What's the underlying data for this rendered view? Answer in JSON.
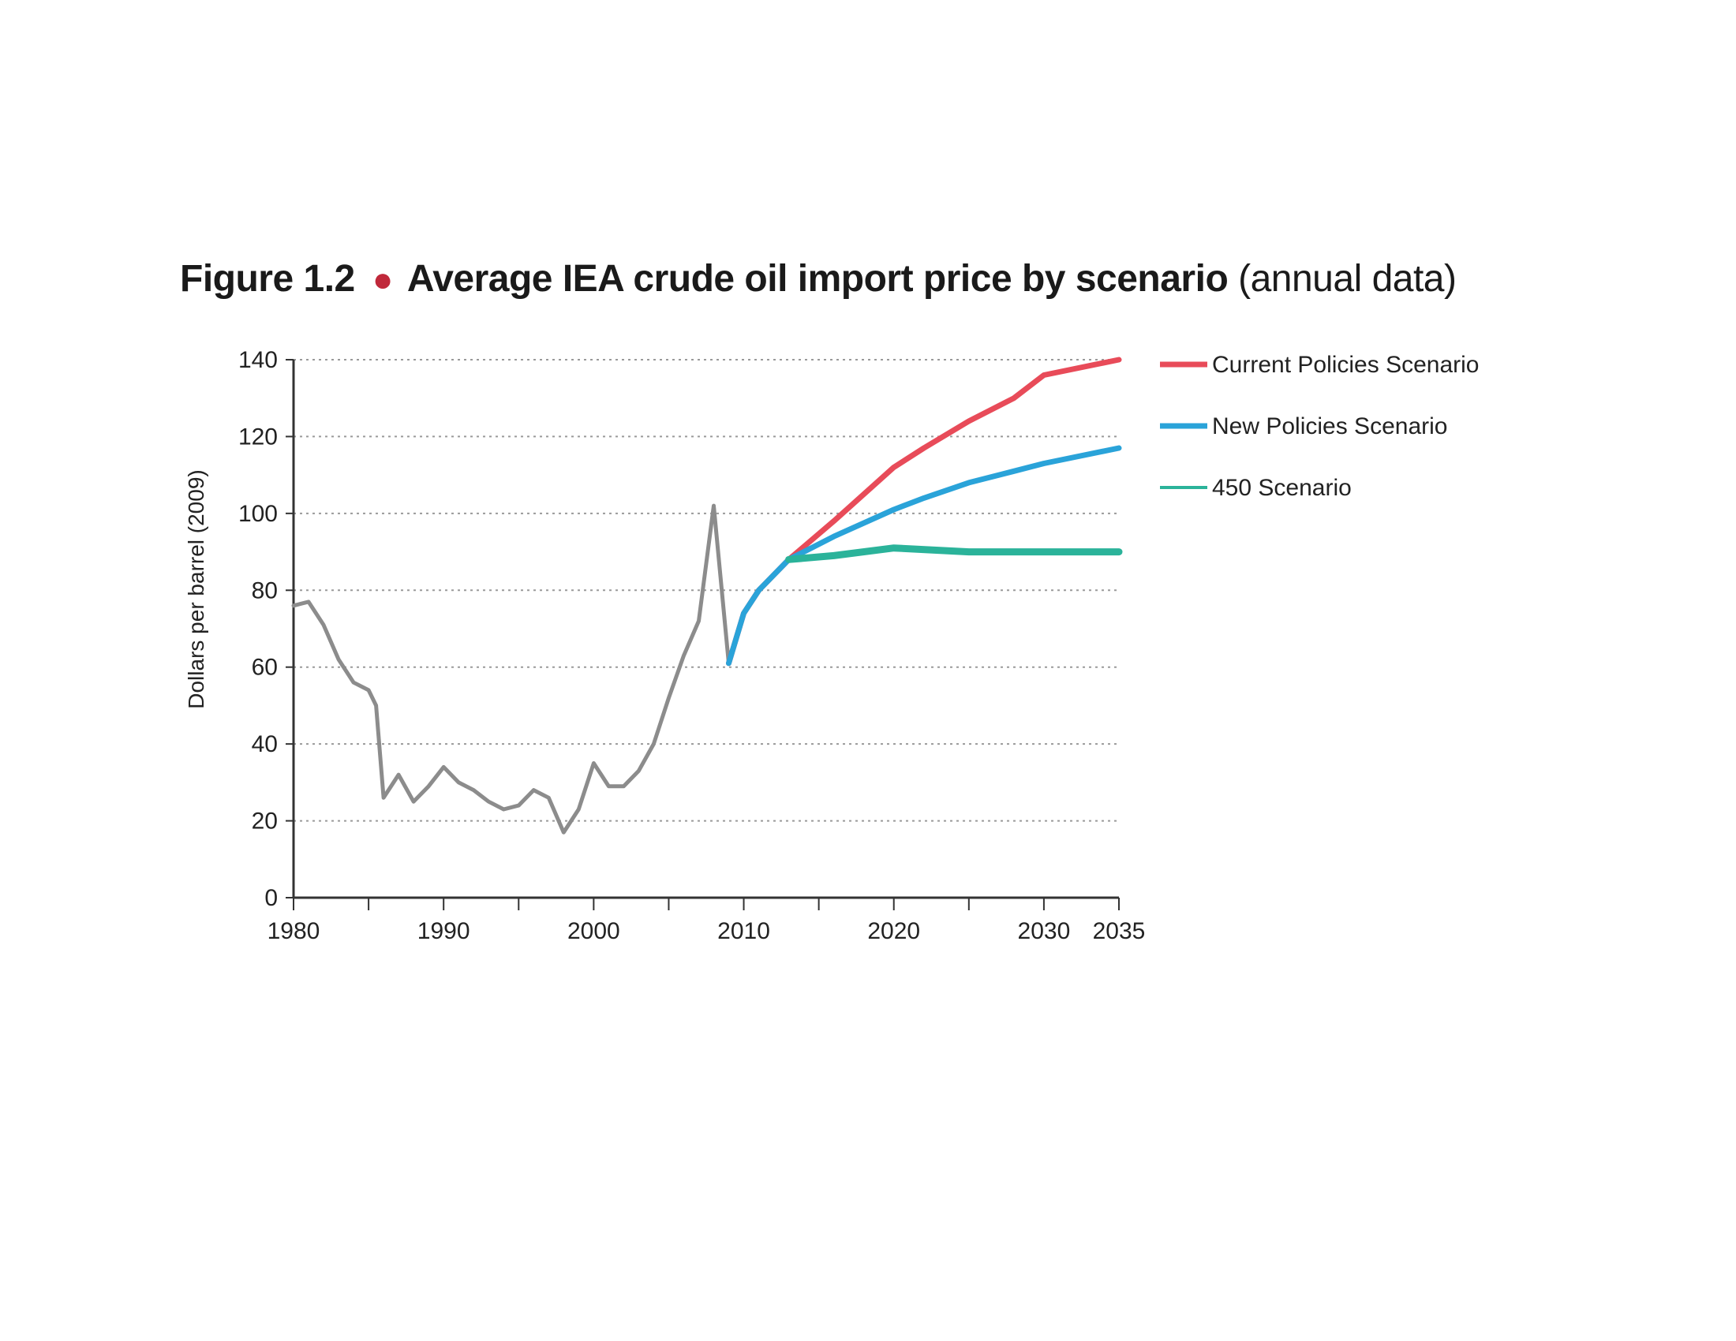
{
  "figure": {
    "label": "Figure 1.2",
    "title": "Average IEA crude oil import price by scenario",
    "note": "(annual data)",
    "bullet_color": "#c0283a"
  },
  "chart_data": {
    "type": "line",
    "ylabel": "Dollars per barrel (2009)",
    "xlabel": "",
    "xlim": [
      1980,
      2035
    ],
    "ylim": [
      0,
      140
    ],
    "x_ticks": [
      1980,
      1990,
      2000,
      2010,
      2020,
      2030,
      2035
    ],
    "y_ticks": [
      0,
      20,
      40,
      60,
      80,
      100,
      120,
      140
    ],
    "y_tick_labels": [
      "0",
      "20",
      "40",
      "60",
      "80",
      "100",
      "120",
      "140"
    ],
    "x_tick_labels": [
      "1980",
      "1990",
      "2000",
      "2010",
      "2020",
      "2030",
      "2035"
    ],
    "grid": true,
    "legend_position": "top-right",
    "history": {
      "color": "#8c8c8c",
      "points": [
        [
          1980,
          76
        ],
        [
          1981,
          77
        ],
        [
          1982,
          71
        ],
        [
          1983,
          62
        ],
        [
          1984,
          56
        ],
        [
          1985,
          54
        ],
        [
          1985.5,
          50
        ],
        [
          1986,
          26
        ],
        [
          1987,
          32
        ],
        [
          1988,
          25
        ],
        [
          1989,
          29
        ],
        [
          1990,
          34
        ],
        [
          1991,
          30
        ],
        [
          1992,
          28
        ],
        [
          1993,
          25
        ],
        [
          1994,
          23
        ],
        [
          1995,
          24
        ],
        [
          1996,
          28
        ],
        [
          1997,
          26
        ],
        [
          1998,
          17
        ],
        [
          1999,
          23
        ],
        [
          2000,
          35
        ],
        [
          2001,
          29
        ],
        [
          2002,
          29
        ],
        [
          2003,
          33
        ],
        [
          2004,
          40
        ],
        [
          2005,
          52
        ],
        [
          2006,
          63
        ],
        [
          2007,
          72
        ],
        [
          2008,
          102
        ],
        [
          2009,
          61
        ]
      ]
    },
    "series": [
      {
        "name": "Current Policies Scenario",
        "color": "#e84b59",
        "points": [
          [
            2009,
            61
          ],
          [
            2010,
            74
          ],
          [
            2011,
            80
          ],
          [
            2013,
            88
          ],
          [
            2016,
            98
          ],
          [
            2020,
            112
          ],
          [
            2022,
            117
          ],
          [
            2025,
            124
          ],
          [
            2028,
            130
          ],
          [
            2030,
            136
          ],
          [
            2035,
            140
          ]
        ]
      },
      {
        "name": "New Policies Scenario",
        "color": "#2aa3d9",
        "points": [
          [
            2009,
            61
          ],
          [
            2010,
            74
          ],
          [
            2011,
            80
          ],
          [
            2013,
            88
          ],
          [
            2016,
            94
          ],
          [
            2020,
            101
          ],
          [
            2022,
            104
          ],
          [
            2025,
            108
          ],
          [
            2028,
            111
          ],
          [
            2030,
            113
          ],
          [
            2035,
            117
          ]
        ]
      },
      {
        "name": "450 Scenario",
        "color": "#2bb39a",
        "points": [
          [
            2013,
            88
          ],
          [
            2016,
            89
          ],
          [
            2020,
            91
          ],
          [
            2025,
            90
          ],
          [
            2030,
            90
          ],
          [
            2035,
            90
          ]
        ]
      }
    ]
  }
}
